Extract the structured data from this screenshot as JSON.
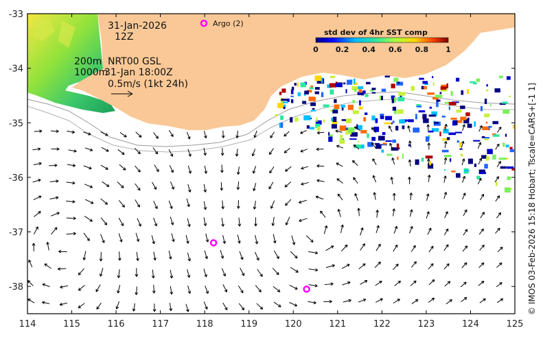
{
  "map": {
    "lon_range": [
      114,
      125
    ],
    "lat_range": [
      -38.5,
      -33
    ],
    "x_ticks": [
      "114",
      "115",
      "116",
      "117",
      "118",
      "119",
      "120",
      "121",
      "122",
      "123",
      "124",
      "125"
    ],
    "y_ticks": [
      "-33",
      "-34",
      "-35",
      "-36",
      "-37",
      "-38"
    ],
    "colors": {
      "land": "#f9c896",
      "frame": "#000000",
      "argo": "#ff00ff",
      "contour": "#9a9a9a"
    }
  },
  "annotations": {
    "date": "31-Jan-2026",
    "hour": "12Z",
    "iso200": "200m",
    "iso1000": "1000m",
    "product": "NRT00 GSL",
    "time": "31-Jan 18:00Z",
    "scale": "0.5m/s (1kt 24h)"
  },
  "legend": {
    "argo_label": "Argo (2)",
    "colorbar_title": "std dev of 4hr SST comp",
    "colorbar_ticks": [
      "0",
      "0.2",
      "0.4",
      "0.6",
      "0.8",
      "1"
    ]
  },
  "argo_floats": [
    {
      "lon": 118.2,
      "lat": -37.2
    },
    {
      "lon": 120.3,
      "lat": -38.05
    }
  ],
  "credit": "© IMOS 03-Feb-2026 15:18 Hobart; Tscale=CARS+[-1 1]"
}
